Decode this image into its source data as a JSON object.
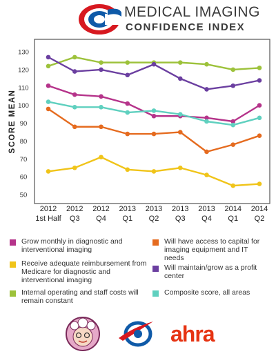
{
  "header": {
    "title_line1": "MEDICAL IMAGING",
    "title_line2": "CONFIDENCE INDEX",
    "logo_icon": "red-blue-circle-logo"
  },
  "chart_data": {
    "type": "line",
    "ylabel": "SCORE MEAN",
    "ylim": [
      45,
      137
    ],
    "yticks": [
      50,
      60,
      70,
      80,
      90,
      100,
      110,
      120,
      130
    ],
    "grid": false,
    "categories": [
      [
        "2012",
        "1st Half"
      ],
      [
        "2012",
        "Q3"
      ],
      [
        "2012",
        "Q4"
      ],
      [
        "2013",
        "Q1"
      ],
      [
        "2013",
        "Q2"
      ],
      [
        "2013",
        "Q3"
      ],
      [
        "2013",
        "Q4"
      ],
      [
        "2014",
        "Q1"
      ],
      [
        "2014",
        "Q2"
      ]
    ],
    "series": [
      {
        "name": "Grow monthly in diagnostic and interventional imaging",
        "color": "#b5338a",
        "values": [
          111,
          106,
          105,
          101,
          94,
          94,
          93,
          91,
          100
        ]
      },
      {
        "name": "Receive adequate reimbursement from Medicare for diagnostic and interventional imaging",
        "color": "#f0c419",
        "values": [
          63,
          65,
          71,
          64,
          63,
          65,
          61,
          55,
          56
        ]
      },
      {
        "name": "Internal operating and staff costs will remain constant",
        "color": "#9dc23b",
        "values": [
          122,
          127,
          124,
          124,
          124,
          124,
          123,
          120,
          121
        ]
      },
      {
        "name": "Will have access to capital for imaging equipment and IT needs",
        "color": "#e56b1f",
        "values": [
          98,
          88,
          88,
          84,
          84,
          85,
          74,
          78,
          83
        ]
      },
      {
        "name": "Will maintain/grow as a profit center",
        "color": "#6b3fa0",
        "values": [
          127,
          119,
          120,
          117,
          123,
          115,
          109,
          111,
          114
        ]
      },
      {
        "name": "Composite score, all areas",
        "color": "#5fd0bf",
        "values": [
          102,
          99,
          99,
          96,
          97,
          95,
          91,
          89,
          93
        ]
      }
    ]
  },
  "legend": [
    {
      "text": "Grow monthly in diagnostic and interventional imaging",
      "color": "#b5338a"
    },
    {
      "text": "Will have access to capital for imaging equipment and IT needs",
      "color": "#e56b1f"
    },
    {
      "text": "Receive adequate reimbursement from Medicare for diagnostic and interventional imaging",
      "color": "#f0c419"
    },
    {
      "text": "Will maintain/grow as a profit center",
      "color": "#6b3fa0"
    },
    {
      "text": "Internal operating and staff costs will remain constant",
      "color": "#9dc23b"
    },
    {
      "text": "Composite score, all areas",
      "color": "#5fd0bf"
    }
  ],
  "footer": {
    "mascot_icon": "grandmother-mascot-icon",
    "swoosh_icon": "swoosh-logo-icon",
    "brand_text": "ahra"
  }
}
